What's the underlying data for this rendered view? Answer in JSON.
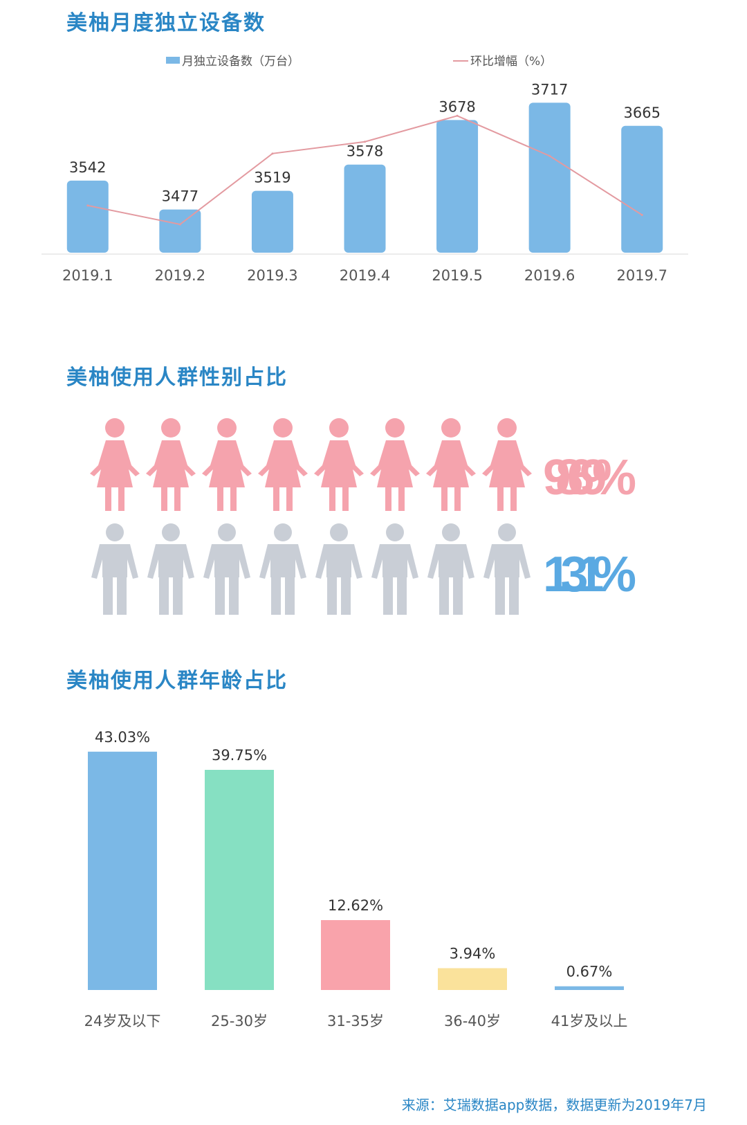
{
  "chart_data": [
    {
      "type": "bar",
      "title": "美柚月度独立设备数",
      "categories": [
        "2019.1",
        "2019.2",
        "2019.3",
        "2019.4",
        "2019.5",
        "2019.6",
        "2019.7"
      ],
      "series": [
        {
          "name": "月独立设备数（万台）",
          "values": [
            3542,
            3477,
            3519,
            3578,
            3678,
            3717,
            3665
          ],
          "color": "#7bb8e6"
        },
        {
          "name": "环比增幅（%）",
          "type": "line",
          "values": [
            -1.0,
            -1.8,
            1.2,
            1.7,
            2.8,
            1.1,
            -1.4
          ],
          "color": "#e39aa0"
        }
      ],
      "data_labels": [
        "3542",
        "3477",
        "3519",
        "3578",
        "3678",
        "3717",
        "3665"
      ],
      "ylim": [
        3380,
        3730
      ],
      "line_ylim": [
        -3,
        3.6
      ],
      "grid": false,
      "legend": "top-center"
    },
    {
      "type": "pictograph",
      "title": "美柚使用人群性别占比",
      "values": [
        98.69,
        1.31
      ],
      "labels": [
        "98.69%",
        "1.31%"
      ],
      "colors": [
        "#f5a3ad",
        "#5aa9e2"
      ],
      "icon_color_grey": "#c9ced6"
    },
    {
      "type": "bar",
      "title": "美柚使用人群年龄占比",
      "categories": [
        "24岁及以下",
        "25-30岁",
        "31-35岁",
        "36-40岁",
        "41岁及以上"
      ],
      "values": [
        43.03,
        39.75,
        12.62,
        3.94,
        0.67
      ],
      "data_labels": [
        "43.03%",
        "39.75%",
        "12.62%",
        "3.94%",
        "0.67%"
      ],
      "colors": [
        "#7bb8e6",
        "#86e0c2",
        "#f9a3ab",
        "#fae29b",
        "#7bb8e6"
      ],
      "ylim": [
        0,
        45
      ],
      "grid": false
    }
  ],
  "source": "来源：艾瑞数据app数据，数据更新为2019年7月"
}
